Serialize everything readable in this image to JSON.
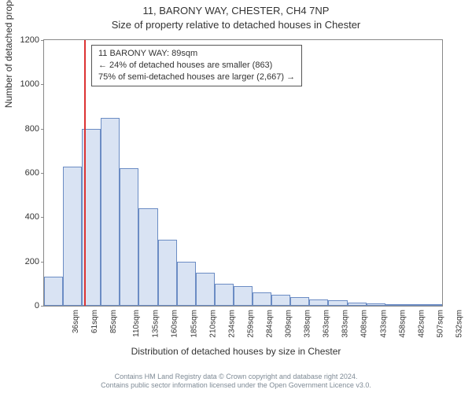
{
  "title_main": "11, BARONY WAY, CHESTER, CH4 7NP",
  "title_sub": "Size of property relative to detached houses in Chester",
  "ylabel": "Number of detached properties",
  "xlabel": "Distribution of detached houses by size in Chester",
  "footer_line1": "Contains HM Land Registry data © Crown copyright and database right 2024.",
  "footer_line2": "Contains public sector information licensed under the Open Government Licence v3.0.",
  "annotation": {
    "line1": "11 BARONY WAY: 89sqm",
    "line2": "← 24% of detached houses are smaller (863)",
    "line3": "75% of semi-detached houses are larger (2,667) →"
  },
  "chart": {
    "type": "histogram",
    "ylim": [
      0,
      1200
    ],
    "ytick_step": 200,
    "background_color": "#ffffff",
    "bar_fill": "#d9e3f3",
    "bar_border": "#6b8cc4",
    "marker_color": "#d33",
    "marker_x": 89,
    "x_start": 36,
    "x_step": 25,
    "x_unit": "sqm",
    "x_categories": [
      "36sqm",
      "61sqm",
      "85sqm",
      "110sqm",
      "135sqm",
      "160sqm",
      "185sqm",
      "210sqm",
      "234sqm",
      "259sqm",
      "284sqm",
      "309sqm",
      "338sqm",
      "363sqm",
      "383sqm",
      "408sqm",
      "433sqm",
      "458sqm",
      "482sqm",
      "507sqm",
      "532sqm"
    ],
    "values": [
      130,
      630,
      800,
      850,
      620,
      440,
      300,
      200,
      150,
      100,
      90,
      60,
      50,
      40,
      30,
      25,
      15,
      10,
      6,
      4,
      3
    ],
    "axis_color": "#888888",
    "tick_fontsize": 11,
    "label_fontsize": 12,
    "title_fontsize": 13
  }
}
